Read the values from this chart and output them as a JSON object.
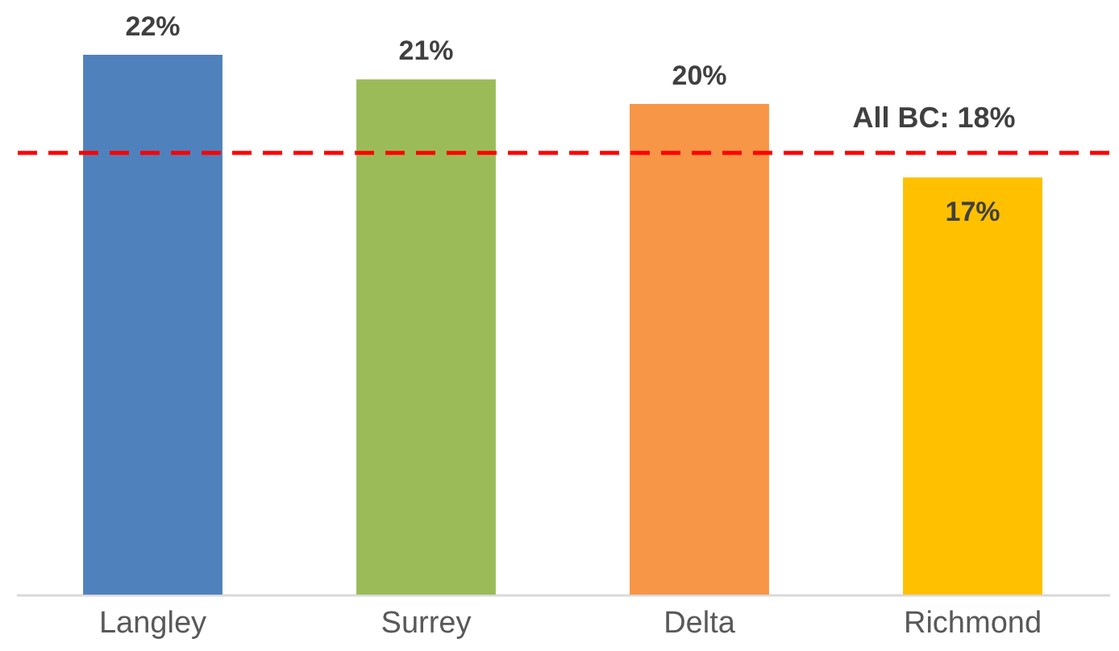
{
  "chart_data": {
    "type": "bar",
    "categories": [
      "Langley",
      "Surrey",
      "Delta",
      "Richmond"
    ],
    "values": [
      22,
      21,
      20,
      17
    ],
    "colors": [
      "#4f81bd",
      "#9bbb59",
      "#f79646",
      "#ffc000"
    ],
    "value_labels": [
      "22%",
      "21%",
      "20%",
      "17%"
    ],
    "grid": false,
    "legend": false,
    "ref_lines": [
      {
        "axis": "y",
        "value": 18,
        "label": "All BC: 18%",
        "color": "#ff0000",
        "line_style": "dashed"
      }
    ]
  }
}
